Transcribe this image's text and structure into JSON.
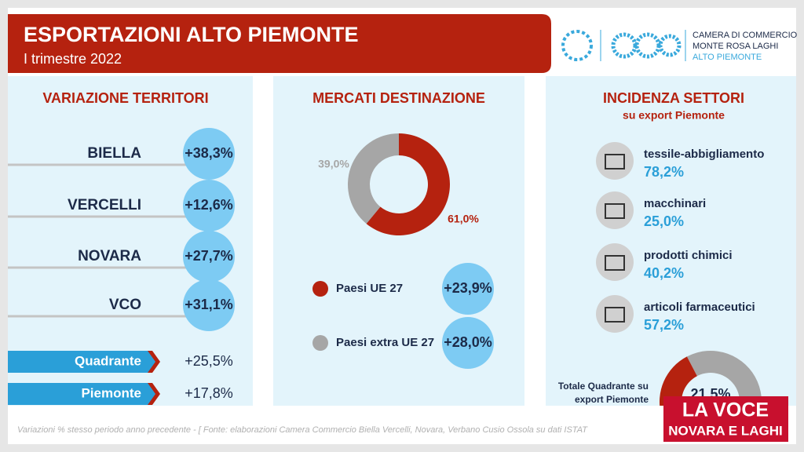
{
  "header": {
    "title": "ESPORTAZIONI ALTO PIEMONTE",
    "subtitle": "I trimestre 2022",
    "logo": [
      "CAMERA DI COMMERCIO",
      "MONTE ROSA LAGHI",
      "ALTO PIEMONTE"
    ]
  },
  "territori": {
    "title": "VARIAZIONE TERRITORI",
    "rows": [
      [
        "BIELLA",
        "+38,3%"
      ],
      [
        "VERCELLI",
        "+12,6%"
      ],
      [
        "NOVARA",
        "+27,7%"
      ],
      [
        "VCO",
        "+31,1%"
      ]
    ],
    "totals": [
      [
        "Quadrante",
        "+25,5%"
      ],
      [
        "Piemonte",
        "+17,8%"
      ]
    ]
  },
  "mercati": {
    "title": "MERCATI DESTINAZIONE",
    "donut": {
      "values": [
        61.0,
        39.0
      ],
      "value_labels": [
        "61,0%",
        "39,0%"
      ],
      "colors": [
        "#b5220f",
        "#a6a6a6"
      ]
    },
    "legend": [
      [
        "Paesi UE 27",
        "+23,9%"
      ],
      [
        "Paesi extra UE 27",
        "+28,0%"
      ]
    ]
  },
  "settori": {
    "title": "INCIDENZA SETTORI",
    "subtitle": "su export Piemonte",
    "items": [
      [
        "tessile-abbigliamento",
        "78,2%"
      ],
      [
        "macchinari",
        "25,0%"
      ],
      [
        "prodotti chimici",
        "40,2%"
      ],
      [
        "articoli farmaceutici",
        "57,2%"
      ]
    ],
    "total": {
      "label": [
        "Totale Quadrante su",
        "export Piemonte"
      ],
      "value": 21.5,
      "value_label": "21,5%",
      "colors": [
        "#b5220f",
        "#a6a6a6"
      ]
    }
  },
  "footer": {
    "note": "Variazioni % stesso periodo anno precedente - [ Fonte: elaborazioni Camera Commercio Biella Vercelli, Novara, Verbano Cusio Ossola su dati ISTAT",
    "brand": [
      "LA VOCE",
      "NOVARA E LAGHI"
    ]
  }
}
